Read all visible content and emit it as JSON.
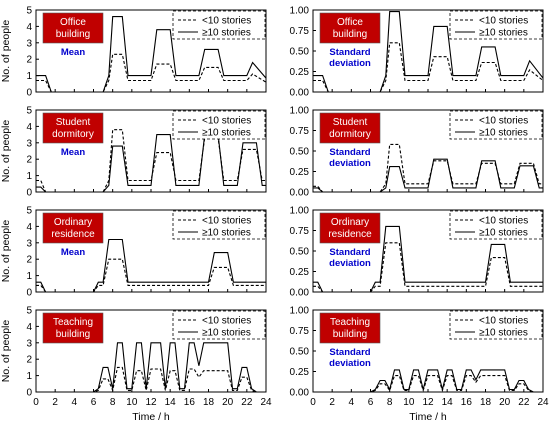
{
  "figure": {
    "xlabel": "Time / h",
    "ylabel": "No. of people",
    "xticks": [
      0,
      2,
      4,
      6,
      8,
      10,
      12,
      14,
      16,
      18,
      20,
      22,
      24
    ],
    "legend": [
      "<10 stories",
      "≥10 stories"
    ],
    "colors": {
      "badge": "#c00000",
      "badge_text": "#ffffff",
      "stat_label": "#0000cc",
      "line": "#000000"
    }
  },
  "chart_data": [
    {
      "type": "line",
      "building": "Office\nbuilding",
      "stat": "Mean",
      "ylim": [
        0,
        5
      ],
      "yticks": [
        "0",
        "1",
        "2",
        "3",
        "4",
        "5"
      ],
      "series": [
        {
          "name": "<10 stories",
          "x": [
            0,
            1,
            1.6,
            6,
            7,
            7.6,
            8,
            9,
            9.6,
            10,
            12,
            12.6,
            14,
            14.6,
            17,
            17.6,
            19,
            19.6,
            22,
            22.6,
            24
          ],
          "y": [
            0.7,
            0.7,
            0,
            0,
            0,
            0.7,
            2.3,
            2.3,
            0.7,
            0.7,
            0.7,
            1.7,
            1.7,
            0.7,
            0.7,
            1.5,
            1.5,
            0.7,
            0.7,
            1.1,
            0.6
          ]
        },
        {
          "name": "≥10 stories",
          "x": [
            0,
            1,
            1.6,
            6,
            7,
            7.6,
            8,
            9,
            9.6,
            10,
            12,
            12.6,
            14,
            14.6,
            17,
            17.6,
            19,
            19.6,
            22,
            22.6,
            24
          ],
          "y": [
            1.0,
            1.0,
            0,
            0,
            0,
            1.0,
            4.6,
            4.6,
            1.0,
            1.0,
            1.0,
            3.8,
            3.8,
            1.0,
            1.0,
            2.6,
            2.6,
            1.0,
            1.0,
            1.8,
            0.85
          ]
        }
      ]
    },
    {
      "type": "line",
      "building": "Office\nbuilding",
      "stat": "Standard\ndeviation",
      "ylim": [
        0,
        1
      ],
      "yticks": [
        "0.00",
        "0.25",
        "0.50",
        "0.75",
        "1.00"
      ],
      "series": [
        {
          "name": "<10 stories",
          "x": [
            0,
            1,
            1.6,
            6,
            7,
            7.6,
            8,
            9,
            9.6,
            10,
            12,
            12.6,
            14,
            14.6,
            17,
            17.6,
            19,
            19.6,
            22,
            22.6,
            24
          ],
          "y": [
            0.14,
            0.14,
            0,
            0,
            0,
            0.14,
            0.6,
            0.6,
            0.14,
            0.14,
            0.14,
            0.43,
            0.43,
            0.14,
            0.14,
            0.36,
            0.36,
            0.14,
            0.14,
            0.27,
            0.14
          ]
        },
        {
          "name": "≥10 stories",
          "x": [
            0,
            1,
            1.6,
            6,
            7,
            7.6,
            8,
            9,
            9.6,
            10,
            12,
            12.6,
            14,
            14.6,
            17,
            17.6,
            19,
            19.6,
            22,
            22.6,
            24
          ],
          "y": [
            0.2,
            0.2,
            0,
            0,
            0,
            0.2,
            0.98,
            0.98,
            0.2,
            0.2,
            0.2,
            0.8,
            0.8,
            0.2,
            0.2,
            0.55,
            0.55,
            0.2,
            0.2,
            0.38,
            0.17
          ]
        }
      ]
    },
    {
      "type": "line",
      "building": "Student\ndormitory",
      "stat": "Mean",
      "ylim": [
        0,
        5
      ],
      "yticks": [
        "0",
        "1",
        "2",
        "3",
        "4",
        "5"
      ],
      "series": [
        {
          "name": "<10 stories",
          "x": [
            0,
            0.5,
            1,
            1.5,
            6,
            7,
            7.6,
            8,
            9,
            9.6,
            12,
            12.6,
            14,
            14.6,
            17,
            17.6,
            19,
            19.6,
            21,
            21.6,
            23,
            23.6,
            24
          ],
          "y": [
            0.7,
            0.7,
            0,
            0,
            0,
            0,
            0.7,
            3.8,
            3.8,
            0.7,
            0.7,
            2.4,
            2.4,
            0.7,
            0.7,
            3.3,
            3.3,
            0.7,
            0.7,
            2.6,
            2.6,
            0.7,
            0.7
          ]
        },
        {
          "name": "≥10 stories",
          "x": [
            0,
            0.5,
            1,
            1.5,
            6,
            7,
            7.6,
            8,
            9,
            9.6,
            12,
            12.6,
            14,
            14.6,
            17,
            17.6,
            19,
            19.6,
            21,
            21.6,
            23,
            23.6,
            24
          ],
          "y": [
            0.3,
            0.3,
            0,
            0,
            0,
            0,
            0.4,
            2.8,
            2.8,
            0.4,
            0.4,
            3.5,
            3.5,
            0.4,
            0.4,
            3.5,
            3.5,
            0.4,
            0.4,
            3.0,
            3.0,
            0.4,
            0.4
          ]
        }
      ]
    },
    {
      "type": "line",
      "building": "Student\ndormitory",
      "stat": "Standard\ndeviation",
      "ylim": [
        0,
        1
      ],
      "yticks": [
        "0.00",
        "0.25",
        "0.50",
        "0.75",
        "1.00"
      ],
      "series": [
        {
          "name": "<10 stories",
          "x": [
            0,
            0.5,
            1,
            1.5,
            6,
            7,
            7.6,
            8,
            9,
            9.6,
            12,
            12.6,
            14,
            14.6,
            17,
            17.6,
            19,
            19.6,
            21,
            21.6,
            23,
            23.6,
            24
          ],
          "y": [
            0.07,
            0.07,
            0,
            0,
            0,
            0,
            0.1,
            0.58,
            0.58,
            0.1,
            0.1,
            0.38,
            0.38,
            0.1,
            0.1,
            0.35,
            0.35,
            0.1,
            0.1,
            0.35,
            0.35,
            0.1,
            0.1
          ]
        },
        {
          "name": "≥10 stories",
          "x": [
            0,
            0.5,
            1,
            1.5,
            6,
            7,
            7.6,
            8,
            9,
            9.6,
            12,
            12.6,
            14,
            14.6,
            17,
            17.6,
            19,
            19.6,
            21,
            21.6,
            23,
            23.6,
            24
          ],
          "y": [
            0.05,
            0.05,
            0,
            0,
            0,
            0,
            0.05,
            0.31,
            0.31,
            0.05,
            0.05,
            0.4,
            0.4,
            0.05,
            0.05,
            0.38,
            0.38,
            0.05,
            0.05,
            0.32,
            0.32,
            0.05,
            0.05
          ]
        }
      ]
    },
    {
      "type": "line",
      "building": "Ordinary\nresidence",
      "stat": "Mean",
      "ylim": [
        0,
        5
      ],
      "yticks": [
        "0",
        "1",
        "2",
        "3",
        "4",
        "5"
      ],
      "series": [
        {
          "name": "<10 stories",
          "x": [
            0,
            0.5,
            1,
            1.5,
            6,
            6.5,
            7,
            7.6,
            9,
            9.6,
            18,
            18.6,
            20,
            20.6,
            24
          ],
          "y": [
            0.4,
            0.4,
            0,
            0,
            0,
            0.4,
            0.4,
            2.0,
            2.0,
            0.4,
            0.4,
            1.5,
            1.5,
            0.4,
            0.4
          ]
        },
        {
          "name": "≥10 stories",
          "x": [
            0,
            0.5,
            1,
            1.5,
            6,
            6.5,
            7,
            7.6,
            9,
            9.6,
            18,
            18.6,
            20,
            20.6,
            24
          ],
          "y": [
            0.6,
            0.6,
            0,
            0,
            0,
            0.6,
            0.6,
            3.2,
            3.2,
            0.6,
            0.6,
            2.4,
            2.4,
            0.6,
            0.6
          ]
        }
      ]
    },
    {
      "type": "line",
      "building": "Ordinary\nresidence",
      "stat": "Standard\ndeviation",
      "ylim": [
        0,
        1
      ],
      "yticks": [
        "0.00",
        "0.25",
        "0.50",
        "0.75",
        "1.00"
      ],
      "series": [
        {
          "name": "<10 stories",
          "x": [
            0,
            0.5,
            1,
            1.5,
            6,
            6.5,
            7,
            7.6,
            9,
            9.6,
            18,
            18.6,
            20,
            20.6,
            24
          ],
          "y": [
            0.07,
            0.07,
            0,
            0,
            0,
            0.07,
            0.07,
            0.6,
            0.6,
            0.07,
            0.07,
            0.42,
            0.42,
            0.07,
            0.07
          ]
        },
        {
          "name": "≥10 stories",
          "x": [
            0,
            0.5,
            1,
            1.5,
            6,
            6.5,
            7,
            7.6,
            9,
            9.6,
            18,
            18.6,
            20,
            20.6,
            24
          ],
          "y": [
            0.12,
            0.12,
            0,
            0,
            0,
            0.12,
            0.12,
            0.8,
            0.8,
            0.12,
            0.12,
            0.58,
            0.58,
            0.12,
            0.12
          ]
        }
      ]
    },
    {
      "type": "line",
      "building": "Teaching\nbuilding",
      "stat": "",
      "ylim": [
        0,
        5
      ],
      "yticks": [
        "0",
        "1",
        "2",
        "3",
        "4",
        "5"
      ],
      "series": [
        {
          "name": "<10 stories",
          "x": [
            0,
            6,
            6.5,
            7,
            7.5,
            8,
            8.5,
            9,
            9.5,
            10,
            10.5,
            11,
            11.5,
            12,
            13,
            13.5,
            14,
            14.5,
            15,
            15.5,
            16,
            16.5,
            17,
            17.5,
            18,
            18.5,
            20,
            20.5,
            21,
            21.5,
            22,
            22.5,
            23,
            24
          ],
          "y": [
            0,
            0,
            0.1,
            0.8,
            0.8,
            0.1,
            1.5,
            1.5,
            0.1,
            0.1,
            1.3,
            1.3,
            0.1,
            1.4,
            1.4,
            0.1,
            1.3,
            1.3,
            0.1,
            0.1,
            1.4,
            1.4,
            0.9,
            1.3,
            1.3,
            1.3,
            1.3,
            0.1,
            0.1,
            0.9,
            0.9,
            0.1,
            0,
            0
          ]
        },
        {
          "name": "≥10 stories",
          "x": [
            0,
            6,
            6.5,
            7,
            7.5,
            8,
            8.5,
            9,
            9.5,
            10,
            10.5,
            11,
            11.5,
            12,
            13,
            13.5,
            14,
            14.5,
            15,
            15.5,
            16,
            16.5,
            17,
            17.5,
            18,
            18.5,
            20,
            20.5,
            21,
            21.5,
            22,
            22.5,
            23,
            24
          ],
          "y": [
            0,
            0,
            0.2,
            1.5,
            1.5,
            0.2,
            3.0,
            3.0,
            0.2,
            0.2,
            3.0,
            3.0,
            0.2,
            3.0,
            3.0,
            0.2,
            3.0,
            3.0,
            0.2,
            0.2,
            3.0,
            3.0,
            1.6,
            3.0,
            3.0,
            3.0,
            3.0,
            0.2,
            0.2,
            1.5,
            1.5,
            0.2,
            0,
            0
          ]
        }
      ]
    },
    {
      "type": "line",
      "building": "Teaching\nbuilding",
      "stat": "Standard\ndeviation",
      "ylim": [
        0,
        1
      ],
      "yticks": [
        "0.00",
        "0.25",
        "0.50",
        "0.75",
        "1.00"
      ],
      "series": [
        {
          "name": "<10 stories",
          "x": [
            0,
            6,
            6.5,
            7,
            7.5,
            8,
            8.5,
            9,
            9.5,
            10,
            10.5,
            11,
            11.5,
            12,
            13,
            13.5,
            14,
            14.5,
            15,
            15.5,
            16,
            16.5,
            17,
            17.5,
            18,
            18.5,
            20,
            20.5,
            21,
            21.5,
            22,
            22.5,
            23,
            24
          ],
          "y": [
            0,
            0,
            0.02,
            0.1,
            0.1,
            0.02,
            0.2,
            0.2,
            0.02,
            0.02,
            0.2,
            0.2,
            0.02,
            0.2,
            0.2,
            0.02,
            0.2,
            0.2,
            0.02,
            0.02,
            0.2,
            0.2,
            0.12,
            0.2,
            0.2,
            0.2,
            0.2,
            0.02,
            0.02,
            0.1,
            0.1,
            0.02,
            0,
            0
          ]
        },
        {
          "name": "≥10 stories",
          "x": [
            0,
            6,
            6.5,
            7,
            7.5,
            8,
            8.5,
            9,
            9.5,
            10,
            10.5,
            11,
            11.5,
            12,
            13,
            13.5,
            14,
            14.5,
            15,
            15.5,
            16,
            16.5,
            17,
            17.5,
            18,
            18.5,
            20,
            20.5,
            21,
            21.5,
            22,
            22.5,
            23,
            24
          ],
          "y": [
            0,
            0,
            0.03,
            0.14,
            0.14,
            0.03,
            0.27,
            0.27,
            0.03,
            0.03,
            0.27,
            0.27,
            0.03,
            0.27,
            0.27,
            0.03,
            0.27,
            0.27,
            0.03,
            0.03,
            0.27,
            0.27,
            0.15,
            0.27,
            0.27,
            0.27,
            0.27,
            0.03,
            0.03,
            0.14,
            0.14,
            0.03,
            0,
            0
          ]
        }
      ]
    }
  ]
}
